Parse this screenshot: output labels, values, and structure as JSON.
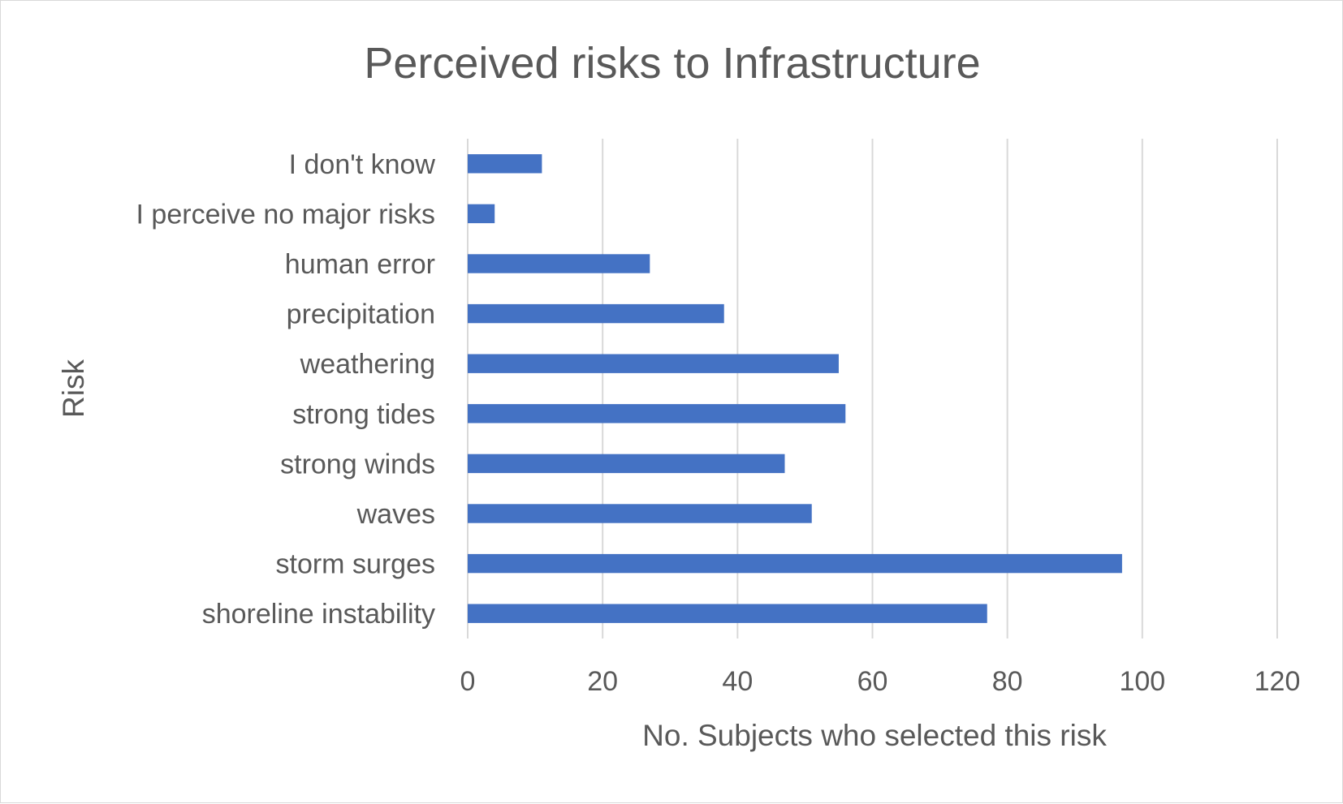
{
  "chart_data": {
    "type": "bar",
    "orientation": "horizontal",
    "title": "Perceived risks to Infrastructure",
    "xlabel": "No. Subjects who selected this risk",
    "ylabel": "Risk",
    "categories": [
      "I don't know",
      "I perceive no major risks",
      "human error",
      "precipitation",
      "weathering",
      "strong tides",
      "strong winds",
      "waves",
      "storm surges",
      "shoreline instability"
    ],
    "values": [
      11,
      4,
      27,
      38,
      55,
      56,
      47,
      51,
      97,
      77
    ],
    "xlim": [
      0,
      120
    ],
    "xticks": [
      "0",
      "20",
      "40",
      "60",
      "80",
      "100",
      "120"
    ],
    "grid": true,
    "legend": "none",
    "colors": {
      "bar": "#4472C4",
      "text": "#595959",
      "grid": "#D9D9D9",
      "border": "#D9D9D9"
    }
  }
}
